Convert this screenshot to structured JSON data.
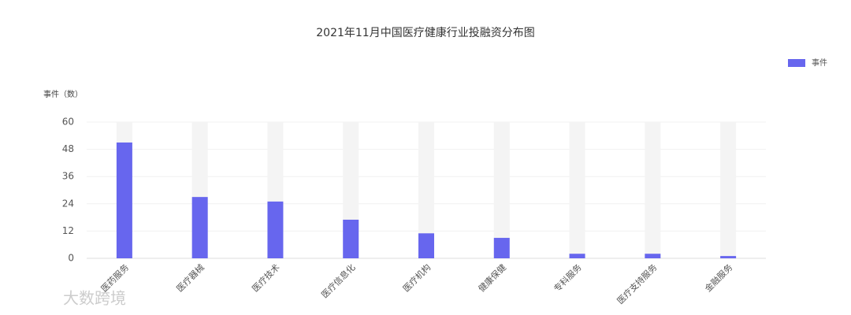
{
  "chart_data": {
    "type": "bar",
    "title": "2021年11月中国医疗健康行业投融资分布图",
    "y_label": "事件（数）",
    "categories": [
      "医药服务",
      "医疗器械",
      "医疗技术",
      "医疗信息化",
      "医疗机构",
      "健康保健",
      "专科服务",
      "医疗支持服务",
      "金融服务"
    ],
    "series": [
      {
        "name": "事件",
        "color": "#6766ee",
        "values": [
          51,
          27,
          25,
          17,
          11,
          9,
          2,
          2,
          1
        ]
      }
    ],
    "ylim": [
      0,
      60
    ],
    "yticks": [
      0,
      12,
      24,
      36,
      48,
      60
    ],
    "grid": true,
    "legend": "top-right",
    "watermark": "大数跨境"
  }
}
